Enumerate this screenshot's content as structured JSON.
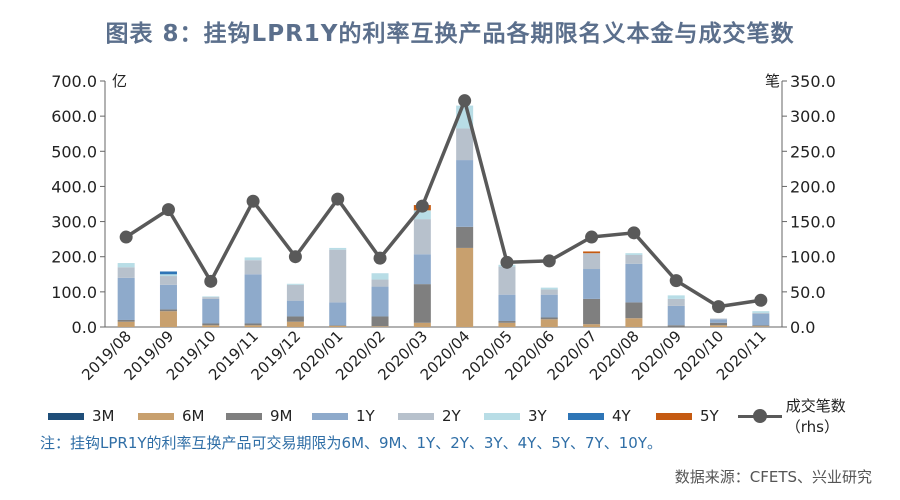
{
  "title": "图表 8：挂钩LPR1Y的利率互换产品各期限名义本金与成交笔数",
  "left_unit": "亿",
  "right_unit": "笔",
  "note": "注：挂钩LPR1Y的利率互换产品可交易期限为6M、9M、1Y、2Y、3Y、4Y、5Y、7Y、10Y。",
  "source": "数据来源：CFETS、兴业研究",
  "chart_data": {
    "type": "bar",
    "stacked": true,
    "categories": [
      "2019/08",
      "2019/09",
      "2019/10",
      "2019/11",
      "2019/12",
      "2020/01",
      "2020/02",
      "2020/03",
      "2020/04",
      "2020/05",
      "2020/06",
      "2020/07",
      "2020/08",
      "2020/09",
      "2020/10",
      "2020/11"
    ],
    "left_axis": {
      "ticks": [
        "700.0",
        "600.0",
        "500.0",
        "400.0",
        "300.0",
        "200.0",
        "100.0",
        "0.0"
      ],
      "ylim": [
        0,
        700
      ]
    },
    "right_axis": {
      "ticks": [
        "350.0",
        "300.0",
        "250.0",
        "200.0",
        "150.0",
        "100.0",
        "50.0",
        "0.0"
      ],
      "ylim": [
        0,
        350
      ]
    },
    "series": [
      {
        "name": "3M",
        "color": "#1f4e79",
        "values": [
          0,
          0,
          0,
          0,
          0,
          0,
          0,
          0,
          0,
          0,
          0,
          0,
          0,
          0,
          0,
          0
        ]
      },
      {
        "name": "6M",
        "color": "#c8a06e",
        "values": [
          15,
          45,
          5,
          5,
          15,
          3,
          2,
          12,
          225,
          12,
          22,
          8,
          25,
          0,
          5,
          2
        ]
      },
      {
        "name": "9M",
        "color": "#7f7f7f",
        "values": [
          5,
          5,
          5,
          5,
          15,
          2,
          28,
          110,
          60,
          5,
          5,
          72,
          45,
          5,
          7,
          3
        ]
      },
      {
        "name": "1Y",
        "color": "#8eaacb",
        "values": [
          120,
          70,
          70,
          140,
          45,
          65,
          85,
          85,
          190,
          75,
          65,
          85,
          110,
          55,
          10,
          33
        ]
      },
      {
        "name": "2Y",
        "color": "#b7c1cc",
        "values": [
          30,
          25,
          5,
          40,
          45,
          150,
          20,
          100,
          90,
          80,
          15,
          45,
          25,
          20,
          2,
          2
        ]
      },
      {
        "name": "3Y",
        "color": "#b8dde6",
        "values": [
          12,
          5,
          2,
          8,
          3,
          5,
          18,
          25,
          65,
          5,
          5,
          0,
          5,
          10,
          0,
          5
        ]
      },
      {
        "name": "4Y",
        "color": "#2e75b6",
        "values": [
          0,
          8,
          0,
          0,
          0,
          0,
          0,
          0,
          0,
          0,
          0,
          0,
          0,
          0,
          0,
          0
        ]
      },
      {
        "name": "5Y",
        "color": "#c55a11",
        "values": [
          0,
          0,
          0,
          0,
          0,
          0,
          0,
          15,
          0,
          0,
          0,
          5,
          0,
          0,
          0,
          0
        ]
      }
    ],
    "line_series": {
      "name": "成交笔数（rhs）",
      "color": "#595959",
      "axis": "right",
      "values": [
        128,
        167,
        65,
        179,
        100,
        182,
        98,
        172,
        322,
        92,
        94,
        128,
        134,
        66,
        29,
        38
      ]
    }
  }
}
